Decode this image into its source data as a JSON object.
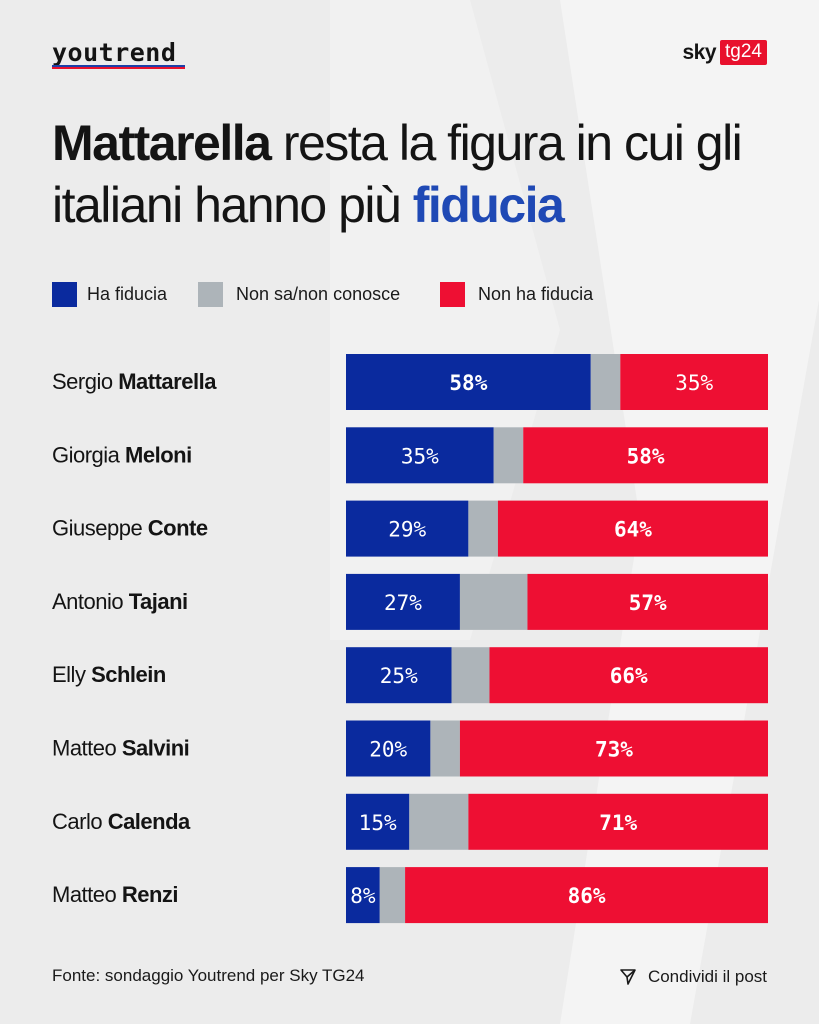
{
  "header": {
    "youtrend_logo": "youtrend",
    "sky_logo_word": "sky",
    "sky_logo_badge": "tg24"
  },
  "title": {
    "bold_lead": "Mattarella",
    "part1": " resta la figura in cui gli italiani hanno più ",
    "highlight": "fiducia"
  },
  "colors": {
    "fiducia": "#0a2a9e",
    "non_sa": "#adb4b9",
    "non_fiducia": "#ee0f33",
    "accent_blue": "#1f49b5"
  },
  "chart_data": {
    "type": "bar",
    "orientation": "horizontal",
    "stacked": true,
    "legend_position": "top",
    "categories": [
      {
        "first": "Sergio",
        "last": "Mattarella"
      },
      {
        "first": "Giorgia",
        "last": "Meloni"
      },
      {
        "first": "Giuseppe",
        "last": "Conte"
      },
      {
        "first": "Antonio",
        "last": "Tajani"
      },
      {
        "first": "Elly",
        "last": "Schlein"
      },
      {
        "first": "Matteo",
        "last": "Salvini"
      },
      {
        "first": "Carlo",
        "last": "Calenda"
      },
      {
        "first": "Matteo",
        "last": "Renzi"
      }
    ],
    "series": [
      {
        "name": "Ha fiducia",
        "values": [
          58,
          35,
          29,
          27,
          25,
          20,
          15,
          8
        ],
        "labels": [
          "58%",
          "35%",
          "29%",
          "27%",
          "25%",
          "20%",
          "15%",
          "8%"
        ]
      },
      {
        "name": "Non sa/non conosce",
        "values": [
          7,
          7,
          7,
          16,
          9,
          7,
          14,
          6
        ]
      },
      {
        "name": "Non ha fiducia",
        "values": [
          35,
          58,
          64,
          57,
          66,
          73,
          71,
          86
        ],
        "labels": [
          "35%",
          "58%",
          "64%",
          "57%",
          "66%",
          "73%",
          "71%",
          "86%"
        ]
      }
    ],
    "highest_series_per_row": [
      0,
      2,
      2,
      2,
      2,
      2,
      2,
      2
    ],
    "xlim": [
      0,
      100
    ]
  },
  "footer": {
    "source": "Fonte: sondaggio Youtrend per Sky TG24",
    "share_label": "Condividi il post"
  }
}
